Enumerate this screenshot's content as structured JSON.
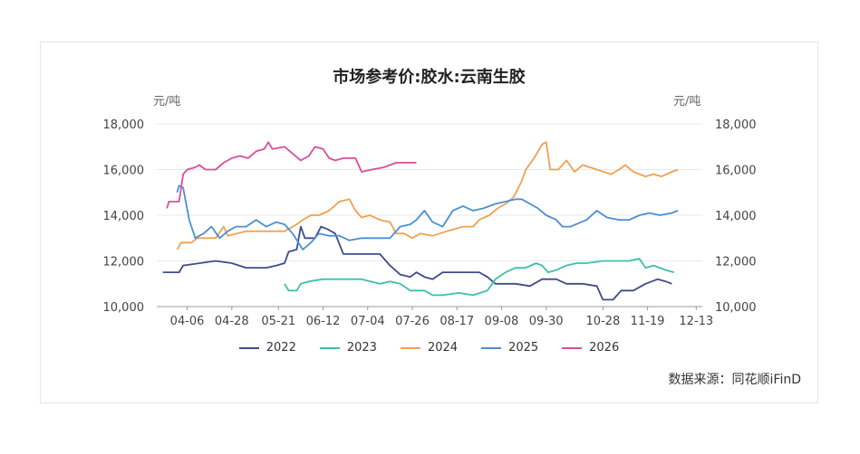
{
  "chart_data": {
    "type": "line",
    "title": "市场参考价:胶水:云南生胶",
    "ylabel_left": "元/吨",
    "ylabel_right": "元/吨",
    "source": "数据来源：同花顺iFinD",
    "ylim": [
      10000,
      18000
    ],
    "yticks": [
      "10,000",
      "12,000",
      "14,000",
      "16,000",
      "18,000"
    ],
    "ytick_values": [
      10000,
      12000,
      14000,
      16000,
      18000
    ],
    "xticks": [
      "04-06",
      "04-28",
      "05-21",
      "06-12",
      "07-04",
      "07-26",
      "08-17",
      "09-08",
      "09-30",
      "10-28",
      "11-19",
      "12-13"
    ],
    "grid": true,
    "legend_position": "bottom",
    "series": [
      {
        "name": "2022",
        "color": "#3f4b8c",
        "points": [
          [
            "03-25",
            11500
          ],
          [
            "04-02",
            11500
          ],
          [
            "04-04",
            11800
          ],
          [
            "04-20",
            12000
          ],
          [
            "04-28",
            11900
          ],
          [
            "05-05",
            11700
          ],
          [
            "05-15",
            11700
          ],
          [
            "05-20",
            11800
          ],
          [
            "05-24",
            11900
          ],
          [
            "05-26",
            12400
          ],
          [
            "05-30",
            12500
          ],
          [
            "06-01",
            13500
          ],
          [
            "06-03",
            13000
          ],
          [
            "06-08",
            13000
          ],
          [
            "06-11",
            13500
          ],
          [
            "06-14",
            13400
          ],
          [
            "06-18",
            13200
          ],
          [
            "06-22",
            12300
          ],
          [
            "07-01",
            12300
          ],
          [
            "07-10",
            12300
          ],
          [
            "07-15",
            11800
          ],
          [
            "07-20",
            11400
          ],
          [
            "07-25",
            11300
          ],
          [
            "07-28",
            11500
          ],
          [
            "08-01",
            11300
          ],
          [
            "08-05",
            11200
          ],
          [
            "08-10",
            11500
          ],
          [
            "08-15",
            11500
          ],
          [
            "08-20",
            11500
          ],
          [
            "08-28",
            11500
          ],
          [
            "09-01",
            11300
          ],
          [
            "09-05",
            11000
          ],
          [
            "09-15",
            11000
          ],
          [
            "09-22",
            10900
          ],
          [
            "09-28",
            11200
          ],
          [
            "10-05",
            11200
          ],
          [
            "10-10",
            11000
          ],
          [
            "10-18",
            11000
          ],
          [
            "10-25",
            10900
          ],
          [
            "10-28",
            10300
          ],
          [
            "11-02",
            10300
          ],
          [
            "11-06",
            10700
          ],
          [
            "11-12",
            10700
          ],
          [
            "11-18",
            11000
          ],
          [
            "11-24",
            11200
          ],
          [
            "11-28",
            11100
          ],
          [
            "12-01",
            11000
          ]
        ]
      },
      {
        "name": "2023",
        "color": "#3dbfad",
        "points": [
          [
            "05-24",
            11000
          ],
          [
            "05-26",
            10700
          ],
          [
            "05-30",
            10700
          ],
          [
            "06-01",
            11000
          ],
          [
            "06-05",
            11100
          ],
          [
            "06-12",
            11200
          ],
          [
            "06-20",
            11200
          ],
          [
            "07-01",
            11200
          ],
          [
            "07-10",
            11000
          ],
          [
            "07-15",
            11100
          ],
          [
            "07-20",
            11000
          ],
          [
            "07-25",
            10700
          ],
          [
            "08-01",
            10700
          ],
          [
            "08-05",
            10500
          ],
          [
            "08-10",
            10500
          ],
          [
            "08-18",
            10600
          ],
          [
            "08-25",
            10500
          ],
          [
            "09-01",
            10700
          ],
          [
            "09-05",
            11200
          ],
          [
            "09-10",
            11500
          ],
          [
            "09-15",
            11700
          ],
          [
            "09-20",
            11700
          ],
          [
            "09-25",
            11900
          ],
          [
            "09-28",
            11800
          ],
          [
            "10-01",
            11500
          ],
          [
            "10-05",
            11600
          ],
          [
            "10-10",
            11800
          ],
          [
            "10-15",
            11900
          ],
          [
            "10-20",
            11900
          ],
          [
            "10-28",
            12000
          ],
          [
            "11-05",
            12000
          ],
          [
            "11-10",
            12000
          ],
          [
            "11-15",
            12100
          ],
          [
            "11-18",
            11700
          ],
          [
            "11-22",
            11800
          ],
          [
            "11-28",
            11600
          ],
          [
            "12-02",
            11500
          ]
        ]
      },
      {
        "name": "2024",
        "color": "#f0a150",
        "points": [
          [
            "04-01",
            12500
          ],
          [
            "04-03",
            12800
          ],
          [
            "04-08",
            12800
          ],
          [
            "04-11",
            13000
          ],
          [
            "04-15",
            13000
          ],
          [
            "04-20",
            13000
          ],
          [
            "04-24",
            13500
          ],
          [
            "04-26",
            13100
          ],
          [
            "05-05",
            13300
          ],
          [
            "05-12",
            13300
          ],
          [
            "05-18",
            13300
          ],
          [
            "05-24",
            13300
          ],
          [
            "05-30",
            13600
          ],
          [
            "06-02",
            13800
          ],
          [
            "06-06",
            14000
          ],
          [
            "06-10",
            14000
          ],
          [
            "06-15",
            14200
          ],
          [
            "06-20",
            14600
          ],
          [
            "06-25",
            14700
          ],
          [
            "06-28",
            14200
          ],
          [
            "07-01",
            13900
          ],
          [
            "07-05",
            14000
          ],
          [
            "07-10",
            13800
          ],
          [
            "07-15",
            13700
          ],
          [
            "07-18",
            13200
          ],
          [
            "07-22",
            13200
          ],
          [
            "07-26",
            13000
          ],
          [
            "07-30",
            13200
          ],
          [
            "08-05",
            13100
          ],
          [
            "08-12",
            13300
          ],
          [
            "08-20",
            13500
          ],
          [
            "08-25",
            13500
          ],
          [
            "08-28",
            13800
          ],
          [
            "09-02",
            14000
          ],
          [
            "09-06",
            14300
          ],
          [
            "09-10",
            14500
          ],
          [
            "09-14",
            14800
          ],
          [
            "09-18",
            15500
          ],
          [
            "09-20",
            16000
          ],
          [
            "09-24",
            16500
          ],
          [
            "09-28",
            17100
          ],
          [
            "09-30",
            17200
          ],
          [
            "10-02",
            16000
          ],
          [
            "10-06",
            16000
          ],
          [
            "10-10",
            16400
          ],
          [
            "10-14",
            15900
          ],
          [
            "10-18",
            16200
          ],
          [
            "10-25",
            16000
          ],
          [
            "11-01",
            15800
          ],
          [
            "11-05",
            16000
          ],
          [
            "11-08",
            16200
          ],
          [
            "11-12",
            15900
          ],
          [
            "11-18",
            15700
          ],
          [
            "11-22",
            15800
          ],
          [
            "11-26",
            15700
          ],
          [
            "12-01",
            15900
          ],
          [
            "12-04",
            16000
          ]
        ]
      },
      {
        "name": "2025",
        "color": "#4a8fd4",
        "points": [
          [
            "04-01",
            15000
          ],
          [
            "04-02",
            15300
          ],
          [
            "04-04",
            15200
          ],
          [
            "04-07",
            13800
          ],
          [
            "04-10",
            13000
          ],
          [
            "04-14",
            13200
          ],
          [
            "04-18",
            13500
          ],
          [
            "04-22",
            13000
          ],
          [
            "04-26",
            13300
          ],
          [
            "04-30",
            13500
          ],
          [
            "05-05",
            13500
          ],
          [
            "05-10",
            13800
          ],
          [
            "05-15",
            13500
          ],
          [
            "05-20",
            13700
          ],
          [
            "05-24",
            13600
          ],
          [
            "05-28",
            13200
          ],
          [
            "06-02",
            12500
          ],
          [
            "06-06",
            12800
          ],
          [
            "06-10",
            13200
          ],
          [
            "06-15",
            13100
          ],
          [
            "06-20",
            13100
          ],
          [
            "06-25",
            12900
          ],
          [
            "07-01",
            13000
          ],
          [
            "07-08",
            13000
          ],
          [
            "07-15",
            13000
          ],
          [
            "07-20",
            13500
          ],
          [
            "07-25",
            13600
          ],
          [
            "07-28",
            13800
          ],
          [
            "08-01",
            14200
          ],
          [
            "08-05",
            13700
          ],
          [
            "08-10",
            13500
          ],
          [
            "08-15",
            14200
          ],
          [
            "08-20",
            14400
          ],
          [
            "08-25",
            14200
          ],
          [
            "08-30",
            14300
          ],
          [
            "09-05",
            14500
          ],
          [
            "09-10",
            14600
          ],
          [
            "09-15",
            14700
          ],
          [
            "09-18",
            14700
          ],
          [
            "09-22",
            14500
          ],
          [
            "09-26",
            14300
          ],
          [
            "09-30",
            14000
          ],
          [
            "10-05",
            13800
          ],
          [
            "10-08",
            13500
          ],
          [
            "10-12",
            13500
          ],
          [
            "10-20",
            13800
          ],
          [
            "10-25",
            14200
          ],
          [
            "10-30",
            13900
          ],
          [
            "11-05",
            13800
          ],
          [
            "11-10",
            13800
          ],
          [
            "11-15",
            14000
          ],
          [
            "11-20",
            14100
          ],
          [
            "11-25",
            14000
          ],
          [
            "12-01",
            14100
          ],
          [
            "12-04",
            14200
          ]
        ]
      },
      {
        "name": "2026",
        "color": "#d94d9b",
        "points": [
          [
            "03-27",
            14300
          ],
          [
            "03-28",
            14600
          ],
          [
            "04-02",
            14600
          ],
          [
            "04-03",
            15200
          ],
          [
            "04-04",
            15800
          ],
          [
            "04-06",
            16000
          ],
          [
            "04-10",
            16100
          ],
          [
            "04-12",
            16200
          ],
          [
            "04-15",
            16000
          ],
          [
            "04-20",
            16000
          ],
          [
            "04-24",
            16300
          ],
          [
            "04-28",
            16500
          ],
          [
            "05-02",
            16600
          ],
          [
            "05-06",
            16500
          ],
          [
            "05-10",
            16800
          ],
          [
            "05-14",
            16900
          ],
          [
            "05-16",
            17200
          ],
          [
            "05-18",
            16900
          ],
          [
            "05-24",
            17000
          ],
          [
            "05-28",
            16700
          ],
          [
            "06-01",
            16400
          ],
          [
            "06-05",
            16600
          ],
          [
            "06-08",
            17000
          ],
          [
            "06-12",
            16900
          ],
          [
            "06-15",
            16500
          ],
          [
            "06-18",
            16400
          ],
          [
            "06-22",
            16500
          ],
          [
            "06-28",
            16500
          ],
          [
            "07-01",
            15900
          ],
          [
            "07-06",
            16000
          ],
          [
            "07-12",
            16100
          ],
          [
            "07-18",
            16300
          ],
          [
            "07-28",
            16300
          ]
        ]
      }
    ]
  }
}
